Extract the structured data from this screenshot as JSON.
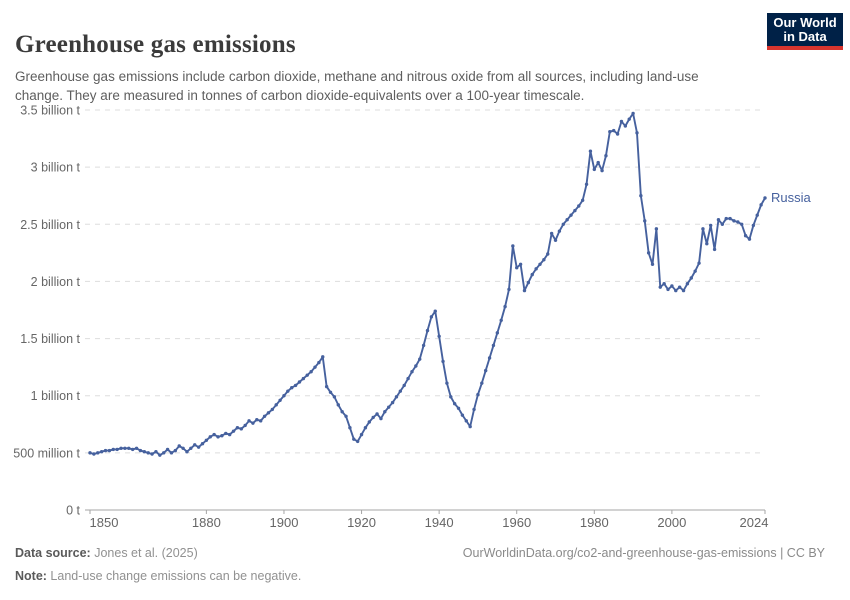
{
  "header": {
    "title": "Greenhouse gas emissions",
    "subtitle": "Greenhouse gas emissions include carbon dioxide, methane and nitrous oxide from all sources, including land-use change. They are measured in tonnes of carbon dioxide-equivalents over a 100-year timescale.",
    "logo": {
      "line1": "Our World",
      "line2": "in Data",
      "bg_color": "#002147",
      "bar_color": "#d8352e",
      "text_color": "#ffffff"
    }
  },
  "chart_data": {
    "type": "line",
    "title": "Greenhouse gas emissions",
    "xlim": [
      1850,
      2024
    ],
    "ylim": [
      0,
      3.5
    ],
    "grid": "horizontal-dashed",
    "grid_color": "#dddddd",
    "axis_color": "#a5a5a5",
    "tick_text_color": "#666666",
    "x_ticks": [
      1850,
      1880,
      1900,
      1920,
      1940,
      1960,
      1980,
      2000,
      2024
    ],
    "y_ticks": [
      {
        "value": 0,
        "label": "0 t"
      },
      {
        "value": 0.5,
        "label": "500 million t"
      },
      {
        "value": 1,
        "label": "1 billion t"
      },
      {
        "value": 1.5,
        "label": "1.5 billion t"
      },
      {
        "value": 2,
        "label": "2 billion t"
      },
      {
        "value": 2.5,
        "label": "2.5 billion t"
      },
      {
        "value": 3,
        "label": "3 billion t"
      },
      {
        "value": 3.5,
        "label": "3.5 billion t"
      }
    ],
    "unit": "t",
    "series": [
      {
        "name": "Russia",
        "color": "#46619e",
        "start_year": 1850,
        "values_unit": "billion tonnes CO2-eq",
        "values": [
          0.5,
          0.49,
          0.5,
          0.51,
          0.52,
          0.52,
          0.53,
          0.53,
          0.54,
          0.54,
          0.54,
          0.53,
          0.54,
          0.52,
          0.51,
          0.5,
          0.49,
          0.51,
          0.48,
          0.5,
          0.53,
          0.5,
          0.52,
          0.56,
          0.54,
          0.51,
          0.54,
          0.57,
          0.55,
          0.58,
          0.61,
          0.64,
          0.66,
          0.64,
          0.65,
          0.67,
          0.66,
          0.69,
          0.72,
          0.71,
          0.74,
          0.78,
          0.76,
          0.79,
          0.78,
          0.82,
          0.85,
          0.88,
          0.92,
          0.96,
          1.0,
          1.04,
          1.07,
          1.09,
          1.12,
          1.15,
          1.18,
          1.21,
          1.25,
          1.29,
          1.34,
          1.08,
          1.03,
          0.99,
          0.92,
          0.86,
          0.82,
          0.72,
          0.62,
          0.6,
          0.66,
          0.72,
          0.77,
          0.81,
          0.84,
          0.8,
          0.86,
          0.9,
          0.94,
          0.99,
          1.04,
          1.09,
          1.15,
          1.21,
          1.26,
          1.32,
          1.44,
          1.57,
          1.69,
          1.74,
          1.52,
          1.3,
          1.11,
          0.99,
          0.93,
          0.89,
          0.83,
          0.78,
          0.73,
          0.88,
          1.01,
          1.11,
          1.22,
          1.33,
          1.44,
          1.55,
          1.66,
          1.78,
          1.93,
          2.31,
          2.12,
          2.15,
          1.92,
          1.99,
          2.06,
          2.11,
          2.15,
          2.19,
          2.24,
          2.42,
          2.36,
          2.44,
          2.5,
          2.54,
          2.58,
          2.62,
          2.66,
          2.71,
          2.85,
          3.14,
          2.98,
          3.04,
          2.97,
          3.1,
          3.31,
          3.32,
          3.29,
          3.4,
          3.36,
          3.42,
          3.47,
          3.3,
          2.75,
          2.53,
          2.25,
          2.15,
          2.46,
          1.95,
          1.98,
          1.93,
          1.96,
          1.92,
          1.95,
          1.92,
          1.98,
          2.03,
          2.09,
          2.16,
          2.46,
          2.33,
          2.49,
          2.28,
          2.54,
          2.5,
          2.55,
          2.55,
          2.53,
          2.52,
          2.5,
          2.4,
          2.37,
          2.49,
          2.58,
          2.67,
          2.73
        ]
      }
    ]
  },
  "footer": {
    "data_source_label": "Data source:",
    "data_source_value": " Jones et al. (2025)",
    "link": "OurWorldinData.org/co2-and-greenhouse-gas-emissions | CC BY",
    "note_label": "Note:",
    "note_value": " Land-use change emissions can be negative."
  }
}
